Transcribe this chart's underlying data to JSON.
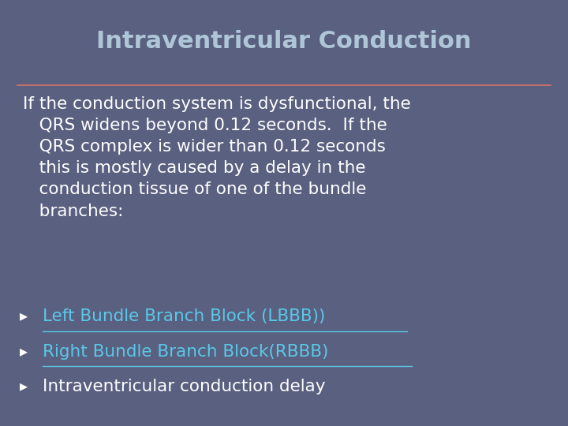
{
  "title": "Intraventricular Conduction",
  "title_color": "#aec6d8",
  "title_fontsize": 22,
  "title_bold": true,
  "background_color": "#5a6080",
  "separator_color": "#c0706a",
  "body_text_color": "#ffffff",
  "body_fontsize": 15.5,
  "link_color": "#5ac8e8",
  "main_text": "If the conduction system is dysfunctional, the\n   QRS widens beyond 0.12 seconds.  If the\n   QRS complex is wider than 0.12 seconds\n   this is mostly caused by a delay in the\n   conduction tissue of one of the bundle\n   branches:",
  "bullets": [
    {
      "text": "Left Bundle Branch Block (LBBB))",
      "link": true
    },
    {
      "text": "Right Bundle Branch Block(RBBB)",
      "link": true
    },
    {
      "text": "Intraventricular conduction delay",
      "link": false
    }
  ],
  "bullet_char": "▸"
}
